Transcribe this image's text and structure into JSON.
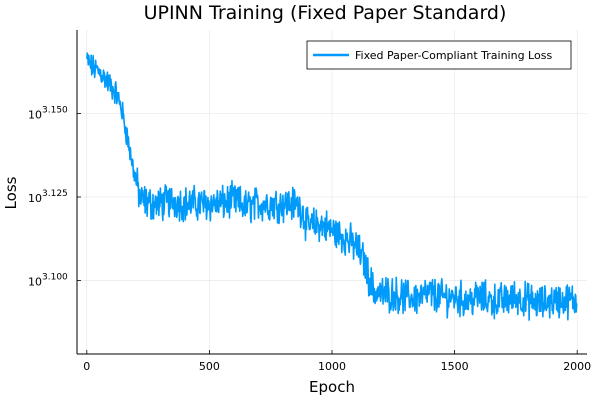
{
  "chart_data": {
    "type": "line",
    "title": "UPINN Training (Fixed Paper Standard)",
    "xlabel": "Epoch",
    "ylabel": "Loss",
    "xlim": [
      -40,
      2040
    ],
    "ylim_log10": [
      3.078,
      3.175
    ],
    "y_scale": "log10",
    "grid": true,
    "legend_position": "top-right",
    "x_ticks": [
      {
        "value": 0,
        "label": "0"
      },
      {
        "value": 500,
        "label": "500"
      },
      {
        "value": 1000,
        "label": "1000"
      },
      {
        "value": 1500,
        "label": "1500"
      },
      {
        "value": 2000,
        "label": "2000"
      }
    ],
    "y_ticks": [
      {
        "value": 3.1,
        "base": "10",
        "exp": "3.100"
      },
      {
        "value": 3.125,
        "base": "10",
        "exp": "3.125"
      },
      {
        "value": 3.15,
        "base": "10",
        "exp": "3.150"
      }
    ],
    "series": [
      {
        "name": "Fixed Paper-Compliant Training Loss",
        "color": "#009AFA",
        "x": [
          0,
          20,
          40,
          60,
          80,
          100,
          120,
          140,
          160,
          180,
          200,
          220,
          260,
          300,
          350,
          400,
          450,
          500,
          550,
          600,
          650,
          700,
          750,
          800,
          850,
          880,
          900,
          950,
          1000,
          1050,
          1100,
          1130,
          1150,
          1170,
          1200,
          1250,
          1300,
          1350,
          1400,
          1450,
          1500,
          1550,
          1600,
          1650,
          1700,
          1750,
          1800,
          1850,
          1900,
          1950,
          2000
        ],
        "y_log10": [
          3.166,
          3.164,
          3.163,
          3.162,
          3.16,
          3.158,
          3.156,
          3.152,
          3.145,
          3.137,
          3.13,
          3.124,
          3.123,
          3.123,
          3.124,
          3.123,
          3.123,
          3.123,
          3.123,
          3.124,
          3.122,
          3.123,
          3.123,
          3.123,
          3.123,
          3.121,
          3.116,
          3.117,
          3.115,
          3.113,
          3.11,
          3.106,
          3.101,
          3.097,
          3.096,
          3.096,
          3.095,
          3.095,
          3.096,
          3.095,
          3.095,
          3.094,
          3.095,
          3.094,
          3.094,
          3.095,
          3.094,
          3.093,
          3.094,
          3.094,
          3.094
        ]
      }
    ]
  }
}
